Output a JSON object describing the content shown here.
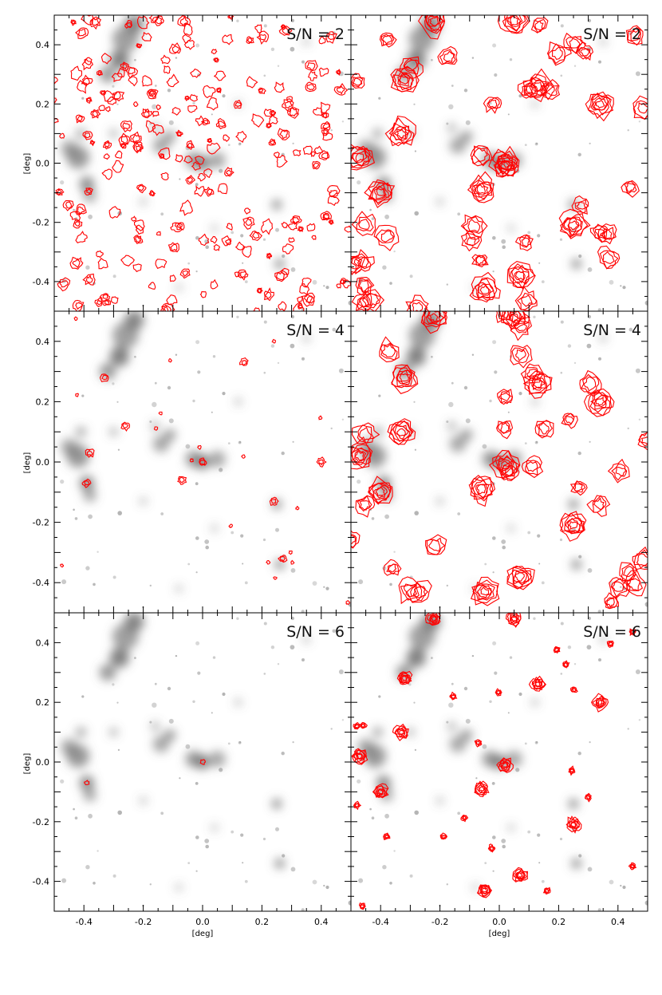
{
  "chart_data": {
    "type": "scatter",
    "description_free": true,
    "layout": {
      "rows": 3,
      "cols": 2,
      "shared_axes": true
    },
    "x_axis": {
      "label": "[deg]",
      "range": [
        -0.5,
        0.5
      ],
      "ticks": [
        -0.4,
        -0.2,
        0.0,
        0.2,
        0.4
      ],
      "tick_labels": [
        "-0.4",
        "-0.2",
        "0.0",
        "0.2",
        "0.4"
      ]
    },
    "y_axis": {
      "label": "[deg]",
      "range": [
        -0.5,
        0.5
      ],
      "ticks": [
        -0.4,
        -0.2,
        0.0,
        0.2,
        0.4
      ],
      "tick_labels": [
        "-0.4",
        "-0.2",
        "0.0",
        "0.2",
        "0.4"
      ]
    },
    "panels": [
      {
        "row": 0,
        "col": 0,
        "label": "S/N = 2",
        "contours": "many small"
      },
      {
        "row": 0,
        "col": 1,
        "label": "S/N = 2",
        "contours": "smoothed"
      },
      {
        "row": 1,
        "col": 0,
        "label": "S/N = 4",
        "contours": "few small"
      },
      {
        "row": 1,
        "col": 1,
        "label": "S/N = 4",
        "contours": "smoothed"
      },
      {
        "row": 2,
        "col": 0,
        "label": "S/N = 6",
        "contours": "minimal"
      },
      {
        "row": 2,
        "col": 1,
        "label": "S/N = 6",
        "contours": "smoothed"
      }
    ],
    "galaxy_density_blobs": [
      {
        "x": -0.23,
        "y": 0.47,
        "w": 0.06,
        "s": 0.9
      },
      {
        "x": -0.26,
        "y": 0.42,
        "w": 0.08,
        "s": 0.6
      },
      {
        "x": -0.28,
        "y": 0.35,
        "w": 0.06,
        "s": 1.0
      },
      {
        "x": -0.32,
        "y": 0.3,
        "w": 0.05,
        "s": 0.7
      },
      {
        "x": -0.42,
        "y": 0.02,
        "w": 0.07,
        "s": 0.7
      },
      {
        "x": -0.45,
        "y": 0.05,
        "w": 0.05,
        "s": 0.5
      },
      {
        "x": -0.39,
        "y": -0.07,
        "w": 0.045,
        "s": 0.9
      },
      {
        "x": -0.38,
        "y": -0.11,
        "w": 0.04,
        "s": 0.5
      },
      {
        "x": -0.41,
        "y": 0.1,
        "w": 0.03,
        "s": 0.6
      },
      {
        "x": -0.14,
        "y": 0.06,
        "w": 0.05,
        "s": 0.5
      },
      {
        "x": -0.11,
        "y": 0.09,
        "w": 0.035,
        "s": 0.7
      },
      {
        "x": -0.03,
        "y": 0.01,
        "w": 0.05,
        "s": 0.7
      },
      {
        "x": 0.0,
        "y": 0.0,
        "w": 0.045,
        "s": 1.0
      },
      {
        "x": 0.05,
        "y": 0.01,
        "w": 0.05,
        "s": 0.5
      },
      {
        "x": 0.25,
        "y": -0.14,
        "w": 0.03,
        "s": 0.9
      },
      {
        "x": 0.26,
        "y": -0.34,
        "w": 0.03,
        "s": 0.9
      },
      {
        "x": -0.16,
        "y": 0.12,
        "w": 0.025,
        "s": 0.6
      },
      {
        "x": -0.3,
        "y": 0.1,
        "w": 0.025,
        "s": 0.5
      },
      {
        "x": 0.12,
        "y": 0.2,
        "w": 0.02,
        "s": 0.5
      },
      {
        "x": -0.2,
        "y": -0.13,
        "w": 0.02,
        "s": 0.5
      },
      {
        "x": 0.35,
        "y": 0.41,
        "w": 0.02,
        "s": 0.5
      },
      {
        "x": -0.08,
        "y": -0.42,
        "w": 0.02,
        "s": 0.4
      },
      {
        "x": 0.04,
        "y": -0.22,
        "w": 0.02,
        "s": 0.4
      }
    ]
  },
  "colors": {
    "contour": "#ff0000",
    "galaxy_density": "#6b6b6b",
    "frame": "#000000"
  }
}
